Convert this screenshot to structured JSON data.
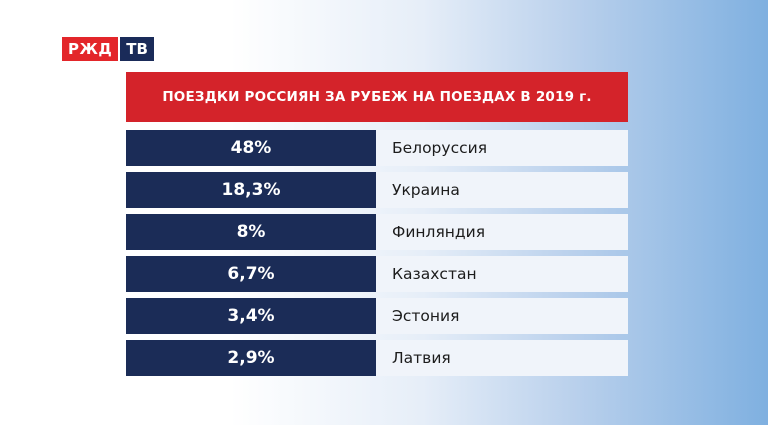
{
  "logo": {
    "left": "РЖД",
    "right": "ТВ"
  },
  "title": "ПОЕЗДКИ РОССИЯН ЗА РУБЕЖ НА ПОЕЗДАХ В 2019 г.",
  "rows": [
    {
      "value": "48%",
      "country": "Белоруссия"
    },
    {
      "value": "18,3%",
      "country": "Украина"
    },
    {
      "value": "8%",
      "country": "Финляндия"
    },
    {
      "value": "6,7%",
      "country": "Казахстан"
    },
    {
      "value": "3,4%",
      "country": "Эстония"
    },
    {
      "value": "2,9%",
      "country": "Латвия"
    }
  ],
  "colors": {
    "title_bg": "#d4232a",
    "value_bg": "#1b2c57",
    "country_bg": "#f0f4fa",
    "logo_red": "#e3262a",
    "logo_navy": "#1a2b59"
  },
  "chart_data": {
    "type": "table",
    "title": "ПОЕЗДКИ РОССИЯН ЗА РУБЕЖ НА ПОЕЗДАХ В 2019 г.",
    "categories": [
      "Белоруссия",
      "Украина",
      "Финляндия",
      "Казахстан",
      "Эстония",
      "Латвия"
    ],
    "values": [
      48,
      18.3,
      8,
      6.7,
      3.4,
      2.9
    ]
  }
}
